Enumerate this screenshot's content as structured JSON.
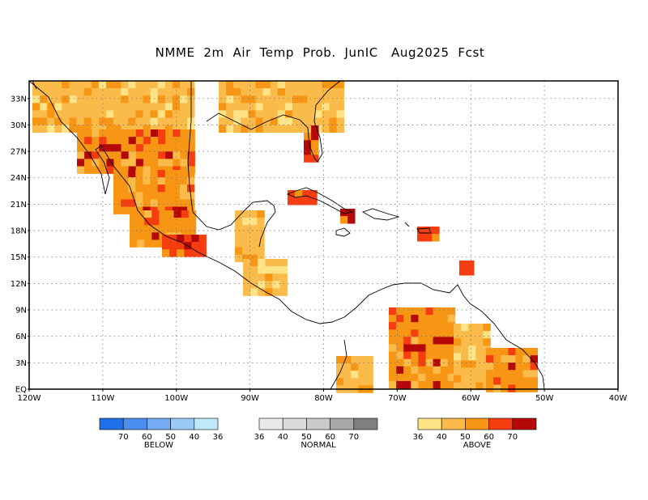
{
  "title": "NMME  2m  Air  Temp  Prob.  JunIC   Aug2025  Fcst",
  "map": {
    "lon_range": [
      -120,
      -40
    ],
    "lat_range": [
      0,
      35
    ],
    "lat_labels": [
      "EQ",
      "3N",
      "6N",
      "9N",
      "12N",
      "15N",
      "18N",
      "21N",
      "24N",
      "27N",
      "30N",
      "33N"
    ],
    "lat_values": [
      0,
      3,
      6,
      9,
      12,
      15,
      18,
      21,
      24,
      27,
      30,
      33
    ],
    "lon_labels": [
      "120W",
      "110W",
      "100W",
      "90W",
      "80W",
      "70W",
      "60W",
      "50W",
      "40W"
    ],
    "lon_values": [
      -120,
      -110,
      -100,
      -90,
      -80,
      -70,
      -60,
      -50,
      -40
    ],
    "grid": true
  },
  "legend": {
    "below": {
      "name": "BELOW",
      "ticks": [
        "70",
        "60",
        "50",
        "40",
        "36"
      ],
      "colors": [
        "#1f6fe8",
        "#4a8ff0",
        "#75acf5",
        "#9ccaf8",
        "#bfe8f8"
      ]
    },
    "normal": {
      "name": "NORMAL",
      "ticks": [
        "36",
        "40",
        "50",
        "60",
        "70"
      ],
      "colors": [
        "#e9e9e9",
        "#dadada",
        "#c9c9c9",
        "#a8a8a8",
        "#7f7f7f"
      ]
    },
    "above": {
      "name": "ABOVE",
      "ticks": [
        "36",
        "40",
        "50",
        "60",
        "70"
      ],
      "colors": [
        "#ffe387",
        "#fbbb4a",
        "#f79514",
        "#f53d10",
        "#b50808"
      ]
    }
  }
}
